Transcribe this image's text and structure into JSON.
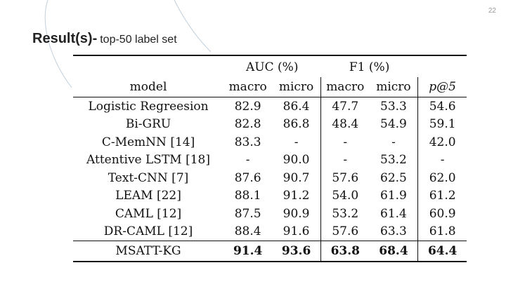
{
  "page_number": "22",
  "title": {
    "main": "Result(s)-",
    "subtitle": "top-50 label set"
  },
  "table": {
    "groups": [
      {
        "label": "AUC (%)"
      },
      {
        "label": "F1 (%)"
      }
    ],
    "columns": [
      "model",
      "macro",
      "micro",
      "macro",
      "micro",
      "p@5"
    ],
    "rows": [
      {
        "model": "Logistic Regreesion",
        "values": [
          "82.9",
          "86.4",
          "47.7",
          "53.3",
          "54.6"
        ]
      },
      {
        "model": "Bi-GRU",
        "values": [
          "82.8",
          "86.8",
          "48.4",
          "54.9",
          "59.1"
        ]
      },
      {
        "model": "C-MemNN [14]",
        "values": [
          "83.3",
          "-",
          "-",
          "-",
          "42.0"
        ]
      },
      {
        "model": "Attentive LSTM [18]",
        "values": [
          "-",
          "90.0",
          "-",
          "53.2",
          "-"
        ]
      },
      {
        "model": "Text-CNN [7]",
        "values": [
          "87.6",
          "90.7",
          "57.6",
          "62.5",
          "62.0"
        ]
      },
      {
        "model": "LEAM [22]",
        "values": [
          "88.1",
          "91.2",
          "54.0",
          "61.9",
          "61.2"
        ]
      },
      {
        "model": "CAML [12]",
        "values": [
          "87.5",
          "90.9",
          "53.2",
          "61.4",
          "60.9"
        ]
      },
      {
        "model": "DR-CAML [12]",
        "values": [
          "88.4",
          "91.6",
          "57.6",
          "63.3",
          "61.8"
        ]
      }
    ],
    "final_row": {
      "model": "MSATT-KG",
      "values": [
        "91.4",
        "93.6",
        "63.8",
        "68.4",
        "64.4"
      ]
    }
  }
}
